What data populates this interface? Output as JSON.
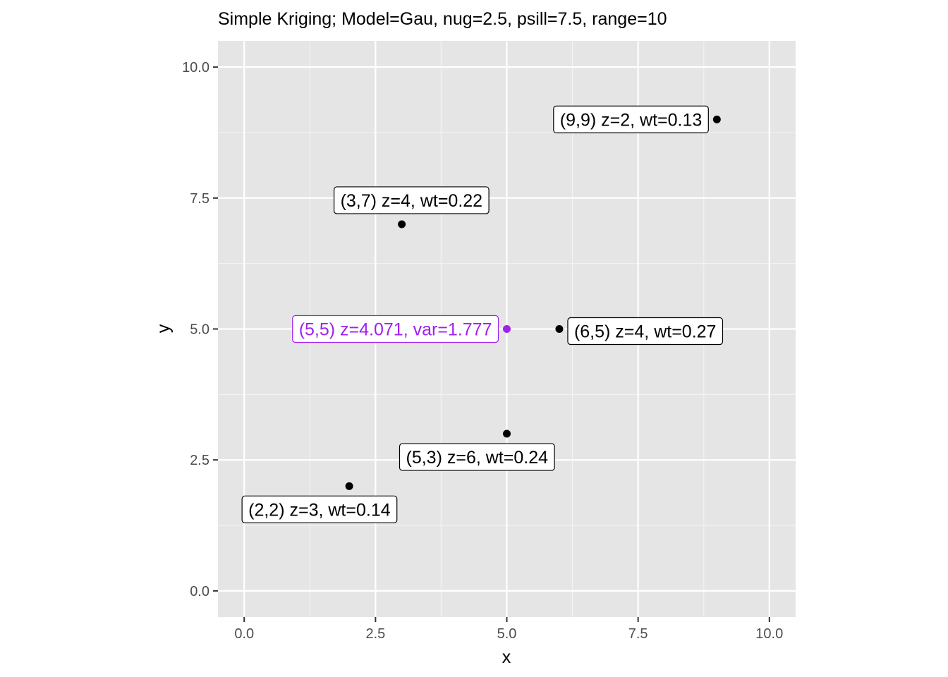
{
  "chart_data": {
    "type": "scatter",
    "title": "Simple Kriging; Model=Gau, nug=2.5, psill=7.5, range=10",
    "xlabel": "x",
    "ylabel": "y",
    "xlim": [
      -0.5,
      10.5
    ],
    "ylim": [
      -0.5,
      10.5
    ],
    "x_ticks": [
      0,
      2.5,
      5,
      7.5,
      10
    ],
    "x_tick_labels": [
      "0.0",
      "2.5",
      "5.0",
      "7.5",
      "10.0"
    ],
    "y_ticks": [
      0,
      2.5,
      5,
      7.5,
      10
    ],
    "y_tick_labels": [
      "0.0",
      "2.5",
      "5.0",
      "7.5",
      "10.0"
    ],
    "grid": true,
    "panel_color": "#e5e5e5",
    "grid_color": "#ffffff",
    "points": [
      {
        "x": 2,
        "y": 2,
        "label": "(2,2) z=3, wt=0.14",
        "color": "#000000",
        "label_side": "below-left"
      },
      {
        "x": 3,
        "y": 7,
        "label": "(3,7) z=4, wt=0.22",
        "color": "#000000",
        "label_side": "above-right"
      },
      {
        "x": 9,
        "y": 9,
        "label": "(9,9) z=2, wt=0.13",
        "color": "#000000",
        "label_side": "left"
      },
      {
        "x": 6,
        "y": 5,
        "label": "(6,5) z=4, wt=0.27",
        "color": "#000000",
        "label_side": "right"
      },
      {
        "x": 5,
        "y": 3,
        "label": "(5,3) z=6, wt=0.24",
        "color": "#000000",
        "label_side": "below-left"
      },
      {
        "x": 5,
        "y": 5,
        "label": "(5,5) z=4.071, var=1.777",
        "color": "#a020f0",
        "label_side": "left"
      }
    ]
  }
}
